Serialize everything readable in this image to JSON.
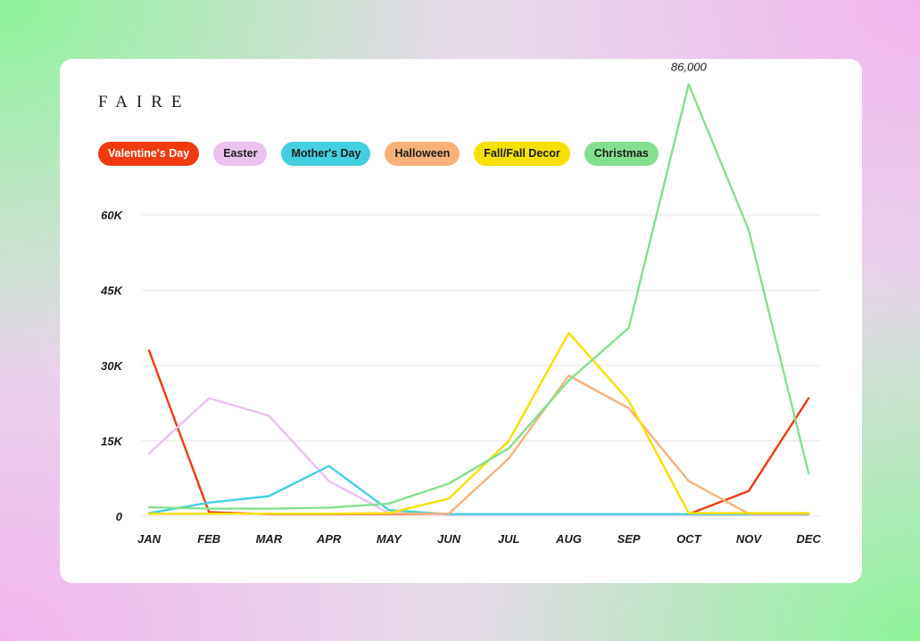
{
  "brand": "FAIRE",
  "chart_data": {
    "type": "line",
    "categories": [
      "JAN",
      "FEB",
      "MAR",
      "APR",
      "MAY",
      "JUN",
      "JUL",
      "AUG",
      "SEP",
      "OCT",
      "NOV",
      "DEC"
    ],
    "y_ticks": [
      0,
      15000,
      30000,
      45000,
      60000
    ],
    "y_tick_labels": [
      "0",
      "15K",
      "30K",
      "45K",
      "60K"
    ],
    "ylim": [
      0,
      86000
    ],
    "grid": "horizontal",
    "legend_position": "top-left",
    "series": [
      {
        "name": "Valentine's Day",
        "color": "#f03a0f",
        "text_color": "#ffffff",
        "values": [
          33000,
          800,
          400,
          400,
          400,
          400,
          400,
          400,
          400,
          400,
          5000,
          23500
        ]
      },
      {
        "name": "Easter",
        "color": "#ebc2ef",
        "text_color": "#1c1c1c",
        "values": [
          12500,
          23500,
          20000,
          7000,
          600,
          300,
          300,
          300,
          300,
          300,
          300,
          300
        ]
      },
      {
        "name": "Mother's Day",
        "color": "#44cfe0",
        "text_color": "#1c1c1c",
        "values": [
          600,
          2700,
          4000,
          10000,
          1200,
          400,
          400,
          400,
          400,
          400,
          400,
          400
        ]
      },
      {
        "name": "Halloween",
        "color": "#f6b27a",
        "text_color": "#1c1c1c",
        "values": [
          500,
          500,
          500,
          500,
          500,
          500,
          11500,
          28000,
          21500,
          7000,
          500,
          500
        ]
      },
      {
        "name": "Fall/Fall Decor",
        "color": "#f5e000",
        "text_color": "#1c1c1c",
        "values": [
          500,
          500,
          500,
          500,
          600,
          3500,
          15000,
          36500,
          23000,
          600,
          600,
          600
        ]
      },
      {
        "name": "Christmas",
        "color": "#84e08e",
        "text_color": "#1c1c1c",
        "values": [
          1800,
          1500,
          1500,
          1700,
          2500,
          6500,
          13500,
          27000,
          37500,
          86000,
          57000,
          8500
        ]
      }
    ],
    "annotations": [
      {
        "text": "86,000",
        "series": "Christmas",
        "category": "OCT"
      }
    ]
  }
}
